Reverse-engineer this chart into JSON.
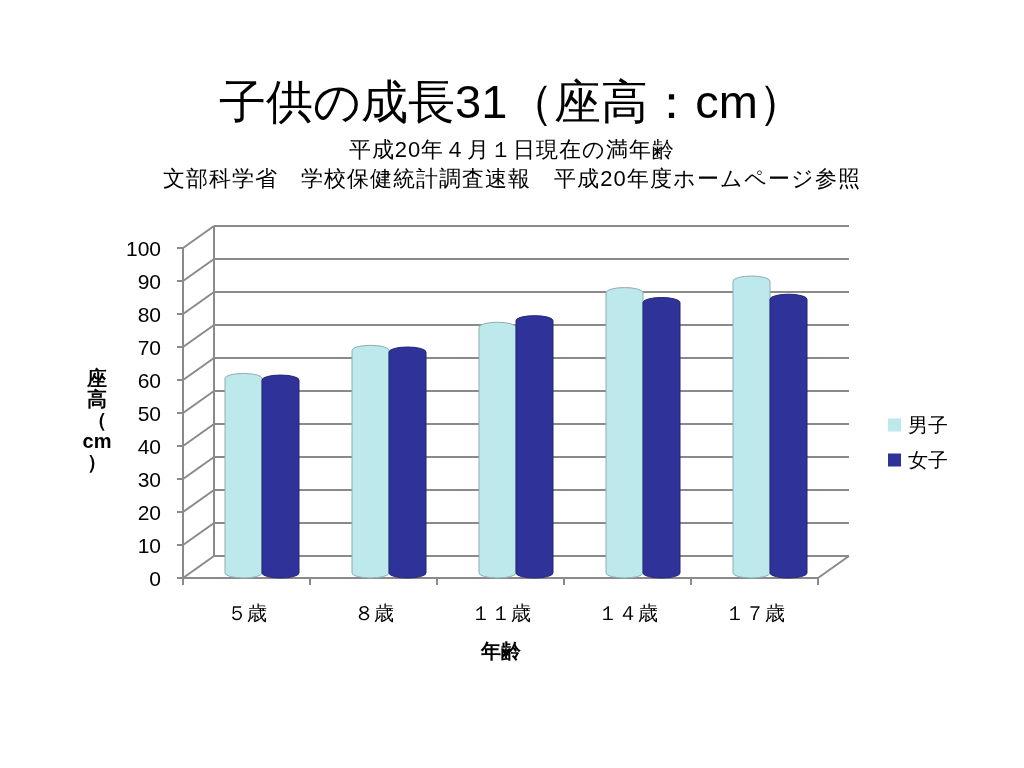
{
  "chart_data": {
    "type": "bar",
    "title": "子供の成長31（座高：cm）",
    "subtitle": "平成20年４月１日現在の満年齢",
    "annotations": [
      "文部科学省　学校保健統計調査速報　平成20年度ホームページ参照"
    ],
    "xlabel": "年齢",
    "ylabel": "座高（cm）",
    "categories": [
      "５歳",
      "８歳",
      "１１歳",
      "１４歳",
      "１７歳"
    ],
    "series": [
      {
        "name": "男子",
        "color": "#bde8ec",
        "values": [
          62,
          70.5,
          77.5,
          88,
          91.5
        ]
      },
      {
        "name": "女子",
        "color": "#2f3399",
        "values": [
          61.5,
          70,
          79.5,
          85,
          86
        ]
      }
    ],
    "ylim": [
      0,
      100
    ],
    "yticks": [
      0,
      10,
      20,
      30,
      40,
      50,
      60,
      70,
      80,
      90,
      100
    ],
    "grid": true,
    "legend": "right"
  }
}
